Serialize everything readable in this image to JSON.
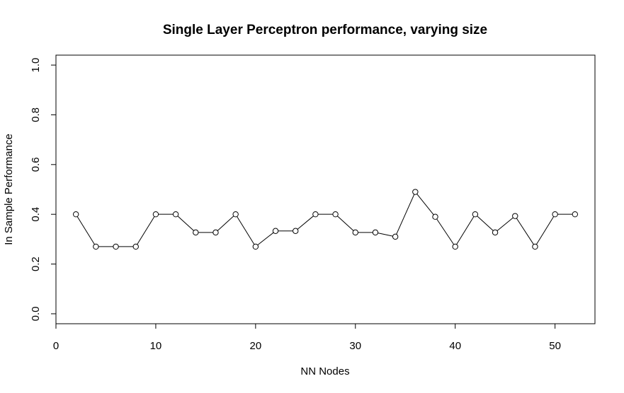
{
  "chart_data": {
    "type": "line",
    "title": "Single Layer Perceptron performance, varying size",
    "xlabel": "NN Nodes",
    "ylabel": "In Sample Performance",
    "xlim": [
      0,
      54
    ],
    "ylim": [
      -0.04,
      1.04
    ],
    "xticks": [
      0,
      10,
      20,
      30,
      40,
      50
    ],
    "yticks": [
      0.0,
      0.2,
      0.4,
      0.6,
      0.8,
      1.0
    ],
    "xtick_labels": [
      "0",
      "10",
      "20",
      "30",
      "40",
      "50"
    ],
    "ytick_labels": [
      "0.0",
      "0.2",
      "0.4",
      "0.6",
      "0.8",
      "1.0"
    ],
    "grid": false,
    "marker": "open-circle",
    "series": [
      {
        "x": [
          2,
          4,
          6,
          8,
          10,
          12,
          14,
          16,
          18,
          20,
          22,
          24,
          26,
          28,
          30,
          32,
          34,
          36,
          38,
          40,
          42,
          44,
          46,
          48,
          50,
          52
        ],
        "y": [
          0.4,
          0.27,
          0.27,
          0.27,
          0.4,
          0.4,
          0.327,
          0.327,
          0.4,
          0.27,
          0.333,
          0.333,
          0.4,
          0.4,
          0.327,
          0.327,
          0.31,
          0.49,
          0.39,
          0.27,
          0.4,
          0.327,
          0.393,
          0.27,
          0.4,
          0.4
        ],
        "color": "#000000"
      }
    ]
  }
}
